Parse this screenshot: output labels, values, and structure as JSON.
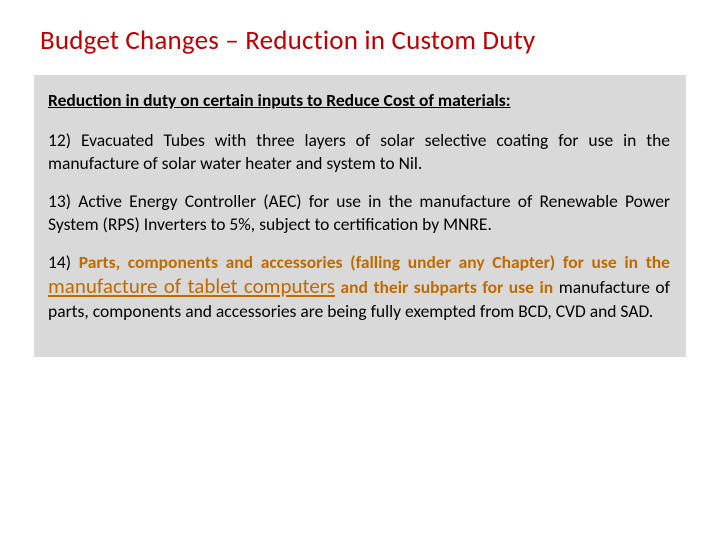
{
  "colors": {
    "title": "#c00000",
    "highlight": "#bf6b00",
    "text": "#000000",
    "box_bg": "#d9d9d9",
    "page_bg": "#ffffff"
  },
  "title": "Budget Changes – Reduction in Custom Duty",
  "subheading": "Reduction in duty on certain inputs to Reduce Cost of materials:",
  "p12": "12) Evacuated Tubes with three layers of solar selective coating for use in the manufacture of solar water heater and system to Nil.",
  "p13": "13) Active Energy Controller (AEC) for use in the manufacture of Renewable Power System (RPS) Inverters to 5%, subject to certification by MNRE.",
  "p14": {
    "a": "14) ",
    "b": "Parts, components and accessories (falling under any Chapter) for use in the ",
    "c": "manufacture of tablet computers",
    "d": " and their subparts for use in ",
    "e": "manufacture of parts, components and accessories are being fully exempted from BCD, CVD and SAD."
  }
}
